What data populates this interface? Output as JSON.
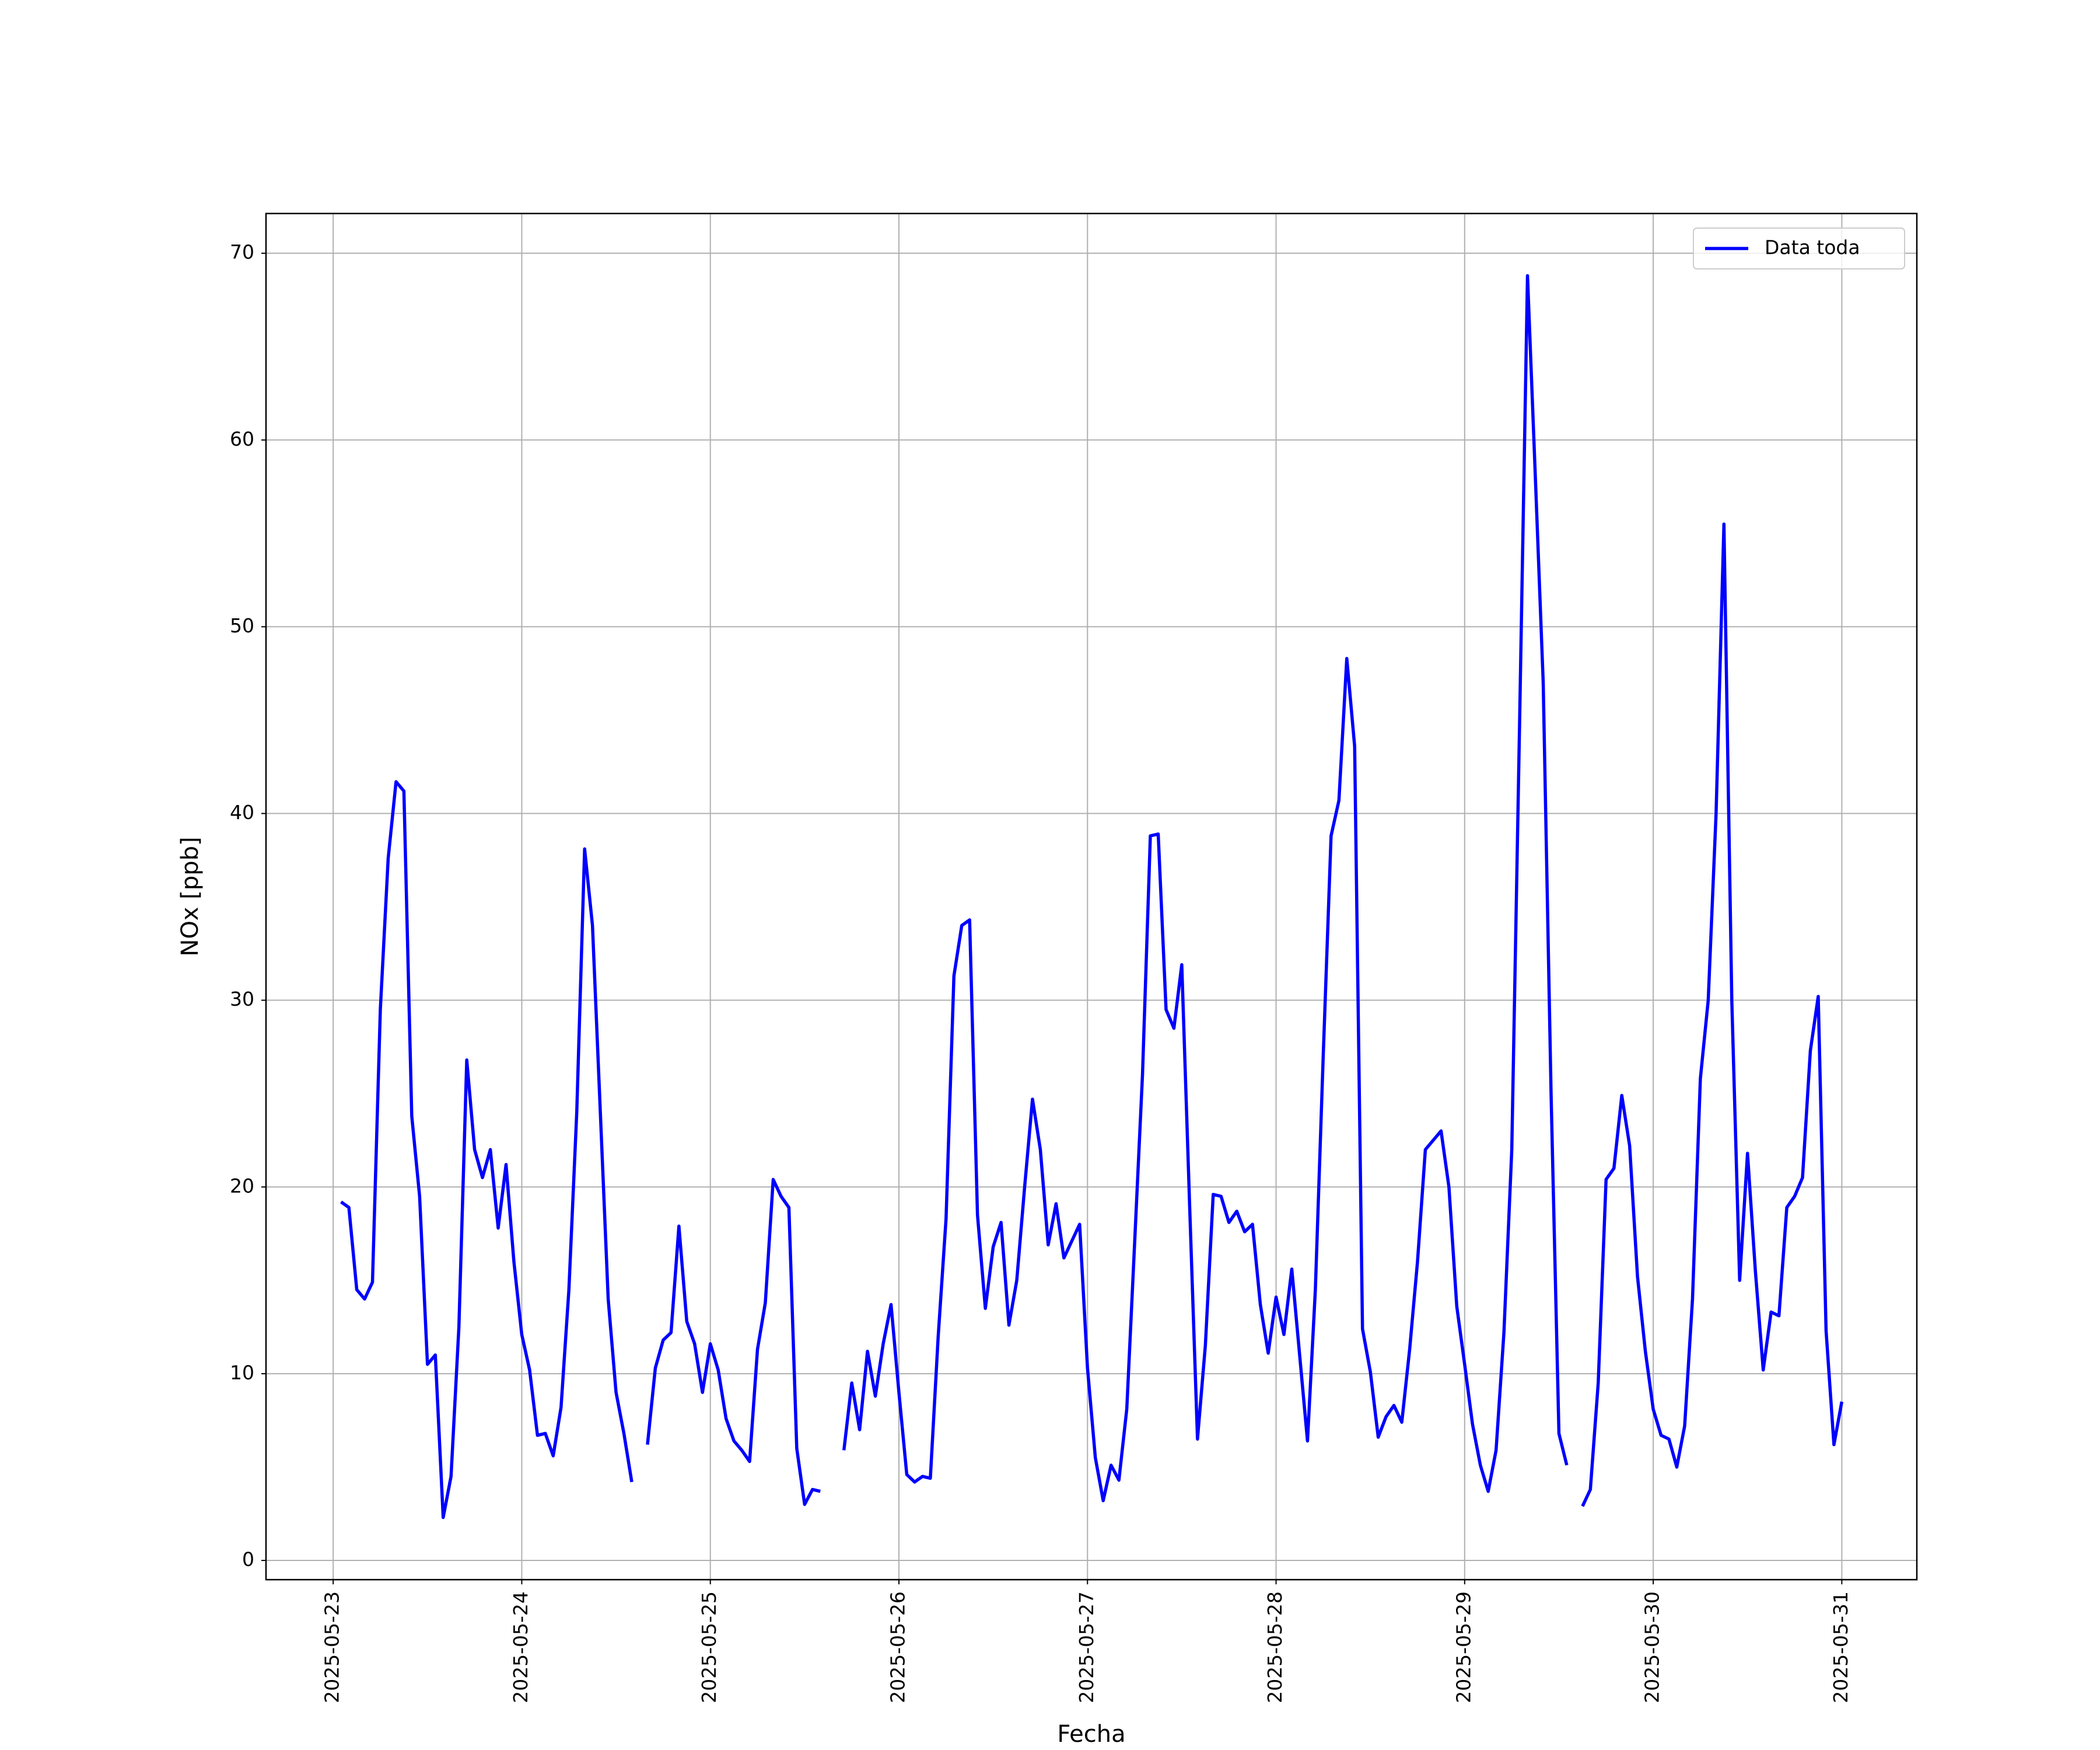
{
  "chart_data": {
    "type": "line",
    "xlabel": "Fecha",
    "ylabel": "NOx [ppb]",
    "x": [
      "2025-05-23T01:00",
      "2025-05-23T02:00",
      "2025-05-23T03:00",
      "2025-05-23T04:00",
      "2025-05-23T05:00",
      "2025-05-23T06:00",
      "2025-05-23T07:00",
      "2025-05-23T08:00",
      "2025-05-23T09:00",
      "2025-05-23T10:00",
      "2025-05-23T11:00",
      "2025-05-23T12:00",
      "2025-05-23T13:00",
      "2025-05-23T14:00",
      "2025-05-23T15:00",
      "2025-05-23T16:00",
      "2025-05-23T17:00",
      "2025-05-23T18:00",
      "2025-05-23T19:00",
      "2025-05-23T20:00",
      "2025-05-23T21:00",
      "2025-05-23T22:00",
      "2025-05-23T23:00",
      "2025-05-24T00:00",
      "2025-05-24T01:00",
      "2025-05-24T02:00",
      "2025-05-24T03:00",
      "2025-05-24T04:00",
      "2025-05-24T05:00",
      "2025-05-24T06:00",
      "2025-05-24T07:00",
      "2025-05-24T08:00",
      "2025-05-24T09:00",
      "2025-05-24T10:00",
      "2025-05-24T11:00",
      "2025-05-24T12:00",
      "2025-05-24T13:00",
      "2025-05-24T14:00",
      "2025-05-24T15:00",
      "2025-05-24T16:00",
      "2025-05-24T17:00",
      "2025-05-24T18:00",
      "2025-05-24T19:00",
      "2025-05-24T20:00",
      "2025-05-24T21:00",
      "2025-05-24T22:00",
      "2025-05-24T23:00",
      "2025-05-25T00:00",
      "2025-05-25T01:00",
      "2025-05-25T02:00",
      "2025-05-25T03:00",
      "2025-05-25T04:00",
      "2025-05-25T05:00",
      "2025-05-25T06:00",
      "2025-05-25T07:00",
      "2025-05-25T08:00",
      "2025-05-25T09:00",
      "2025-05-25T10:00",
      "2025-05-25T11:00",
      "2025-05-25T12:00",
      "2025-05-25T13:00",
      "2025-05-25T14:00",
      "2025-05-25T15:00",
      "2025-05-25T16:00",
      "2025-05-25T17:00",
      "2025-05-25T18:00",
      "2025-05-25T19:00",
      "2025-05-25T20:00",
      "2025-05-25T21:00",
      "2025-05-25T22:00",
      "2025-05-25T23:00",
      "2025-05-26T00:00",
      "2025-05-26T01:00",
      "2025-05-26T02:00",
      "2025-05-26T03:00",
      "2025-05-26T04:00",
      "2025-05-26T05:00",
      "2025-05-26T06:00",
      "2025-05-26T07:00",
      "2025-05-26T08:00",
      "2025-05-26T09:00",
      "2025-05-26T10:00",
      "2025-05-26T11:00",
      "2025-05-26T12:00",
      "2025-05-26T13:00",
      "2025-05-26T14:00",
      "2025-05-26T15:00",
      "2025-05-26T16:00",
      "2025-05-26T17:00",
      "2025-05-26T18:00",
      "2025-05-26T19:00",
      "2025-05-26T20:00",
      "2025-05-26T21:00",
      "2025-05-26T22:00",
      "2025-05-26T23:00",
      "2025-05-27T00:00",
      "2025-05-27T01:00",
      "2025-05-27T02:00",
      "2025-05-27T03:00",
      "2025-05-27T04:00",
      "2025-05-27T05:00",
      "2025-05-27T06:00",
      "2025-05-27T07:00",
      "2025-05-27T08:00",
      "2025-05-27T09:00",
      "2025-05-27T10:00",
      "2025-05-27T11:00",
      "2025-05-27T12:00",
      "2025-05-27T13:00",
      "2025-05-27T14:00",
      "2025-05-27T15:00",
      "2025-05-27T16:00",
      "2025-05-27T17:00",
      "2025-05-27T18:00",
      "2025-05-27T19:00",
      "2025-05-27T20:00",
      "2025-05-27T21:00",
      "2025-05-27T22:00",
      "2025-05-27T23:00",
      "2025-05-28T00:00",
      "2025-05-28T01:00",
      "2025-05-28T02:00",
      "2025-05-28T03:00",
      "2025-05-28T04:00",
      "2025-05-28T05:00",
      "2025-05-28T06:00",
      "2025-05-28T07:00",
      "2025-05-28T08:00",
      "2025-05-28T09:00",
      "2025-05-28T10:00",
      "2025-05-28T11:00",
      "2025-05-28T12:00",
      "2025-05-28T13:00",
      "2025-05-28T14:00",
      "2025-05-28T15:00",
      "2025-05-28T16:00",
      "2025-05-28T17:00",
      "2025-05-28T18:00",
      "2025-05-28T19:00",
      "2025-05-28T20:00",
      "2025-05-28T21:00",
      "2025-05-28T22:00",
      "2025-05-28T23:00",
      "2025-05-29T00:00",
      "2025-05-29T01:00",
      "2025-05-29T02:00",
      "2025-05-29T03:00",
      "2025-05-29T04:00",
      "2025-05-29T05:00",
      "2025-05-29T06:00",
      "2025-05-29T07:00",
      "2025-05-29T08:00",
      "2025-05-29T09:00",
      "2025-05-29T10:00",
      "2025-05-29T11:00",
      "2025-05-29T12:00",
      "2025-05-29T13:00",
      "2025-05-29T14:00",
      "2025-05-29T15:00",
      "2025-05-29T16:00",
      "2025-05-29T17:00",
      "2025-05-29T18:00",
      "2025-05-29T19:00",
      "2025-05-29T20:00",
      "2025-05-29T21:00",
      "2025-05-29T22:00",
      "2025-05-29T23:00",
      "2025-05-30T00:00",
      "2025-05-30T01:00",
      "2025-05-30T02:00",
      "2025-05-30T03:00",
      "2025-05-30T04:00",
      "2025-05-30T05:00",
      "2025-05-30T06:00",
      "2025-05-30T07:00",
      "2025-05-30T08:00",
      "2025-05-30T09:00",
      "2025-05-30T10:00",
      "2025-05-30T11:00",
      "2025-05-30T12:00",
      "2025-05-30T13:00",
      "2025-05-30T14:00",
      "2025-05-30T15:00",
      "2025-05-30T16:00",
      "2025-05-30T17:00",
      "2025-05-30T18:00",
      "2025-05-30T19:00",
      "2025-05-30T20:00",
      "2025-05-30T21:00",
      "2025-05-30T22:00",
      "2025-05-30T23:00",
      "2025-05-31T00:00"
    ],
    "series": [
      {
        "name": "Data toda",
        "color": "#0000ff",
        "values": [
          19.2,
          18.9,
          14.5,
          14.0,
          14.9,
          29.5,
          37.6,
          41.7,
          41.2,
          23.8,
          19.5,
          10.5,
          11.0,
          2.3,
          4.5,
          12.5,
          26.8,
          22.0,
          20.5,
          22.0,
          17.8,
          21.2,
          16.0,
          12.1,
          10.2,
          6.7,
          6.8,
          5.6,
          8.2,
          14.5,
          24.0,
          38.1,
          34.0,
          24.0,
          14.0,
          9.0,
          6.8,
          4.2,
          null,
          6.2,
          10.3,
          11.8,
          12.2,
          17.9,
          12.8,
          11.6,
          9.0,
          11.6,
          10.2,
          7.6,
          6.4,
          5.9,
          5.3,
          11.3,
          13.8,
          20.4,
          19.5,
          18.9,
          6.0,
          3.0,
          3.8,
          3.7,
          null,
          null,
          5.9,
          9.5,
          7.0,
          11.2,
          8.8,
          11.6,
          13.7,
          9.0,
          4.6,
          4.2,
          4.5,
          4.4,
          12.0,
          18.3,
          31.3,
          34.0,
          34.3,
          18.5,
          13.5,
          16.8,
          18.1,
          12.6,
          15.0,
          20.0,
          24.7,
          22.0,
          16.9,
          19.1,
          16.2,
          17.1,
          18.0,
          10.3,
          5.5,
          3.2,
          5.1,
          4.3,
          8.1,
          17.0,
          26.0,
          38.8,
          38.9,
          29.5,
          28.5,
          31.9,
          19.0,
          6.5,
          11.5,
          19.6,
          19.5,
          18.1,
          18.7,
          17.6,
          18.0,
          13.7,
          11.1,
          14.1,
          12.1,
          15.6,
          11.0,
          6.4,
          14.5,
          27.0,
          38.8,
          40.7,
          48.3,
          43.6,
          12.4,
          10.1,
          6.6,
          7.7,
          8.3,
          7.4,
          11.3,
          16.0,
          22.0,
          22.5,
          23.0,
          20.0,
          13.6,
          10.5,
          7.3,
          5.1,
          3.7,
          5.9,
          12.2,
          22.0,
          45.0,
          68.8,
          58.0,
          47.0,
          25.0,
          6.8,
          5.1,
          null,
          2.9,
          3.8,
          9.5,
          20.4,
          21.0,
          24.9,
          22.2,
          15.2,
          11.2,
          8.1,
          6.7,
          6.5,
          5.0,
          7.2,
          14.0,
          25.8,
          30.0,
          40.0,
          55.5,
          30.0,
          15.0,
          21.8,
          15.5,
          10.2,
          13.3,
          13.1,
          18.9,
          19.5,
          20.5,
          27.3,
          30.2,
          12.3,
          6.2,
          8.5
        ]
      }
    ],
    "xlim": [
      "2025-05-22T15:27",
      "2025-05-31T09:33"
    ],
    "xticks": [
      "2025-05-23",
      "2025-05-24",
      "2025-05-25",
      "2025-05-26",
      "2025-05-27",
      "2025-05-28",
      "2025-05-29",
      "2025-05-30",
      "2025-05-31"
    ],
    "ylim": [
      -1.03,
      72.13
    ],
    "yticks": [
      0,
      10,
      20,
      30,
      40,
      50,
      60,
      70
    ],
    "grid": true,
    "legend": "upper right"
  }
}
